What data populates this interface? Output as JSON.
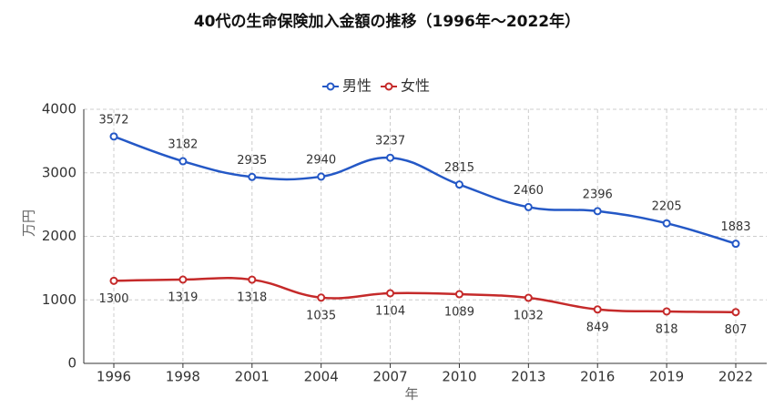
{
  "chart_data": {
    "type": "line",
    "title": "40代の生命保険加入金額の推移（1996年〜2022年）",
    "x_label": "年",
    "y_label": "万円",
    "categories": [
      "1996",
      "1998",
      "2001",
      "2004",
      "2007",
      "2010",
      "2013",
      "2016",
      "2019",
      "2022"
    ],
    "series": [
      {
        "name": "男性",
        "color": "#2458c6",
        "values": [
          3572,
          3182,
          2935,
          2940,
          3237,
          2815,
          2460,
          2396,
          2205,
          1883
        ]
      },
      {
        "name": "女性",
        "color": "#c52a2a",
        "values": [
          1300,
          1319,
          1318,
          1035,
          1104,
          1089,
          1032,
          849,
          818,
          807
        ]
      }
    ],
    "ylim": [
      0,
      4000
    ],
    "yticks": [
      0,
      1000,
      2000,
      3000,
      4000
    ],
    "grid": true,
    "legend": "top"
  }
}
